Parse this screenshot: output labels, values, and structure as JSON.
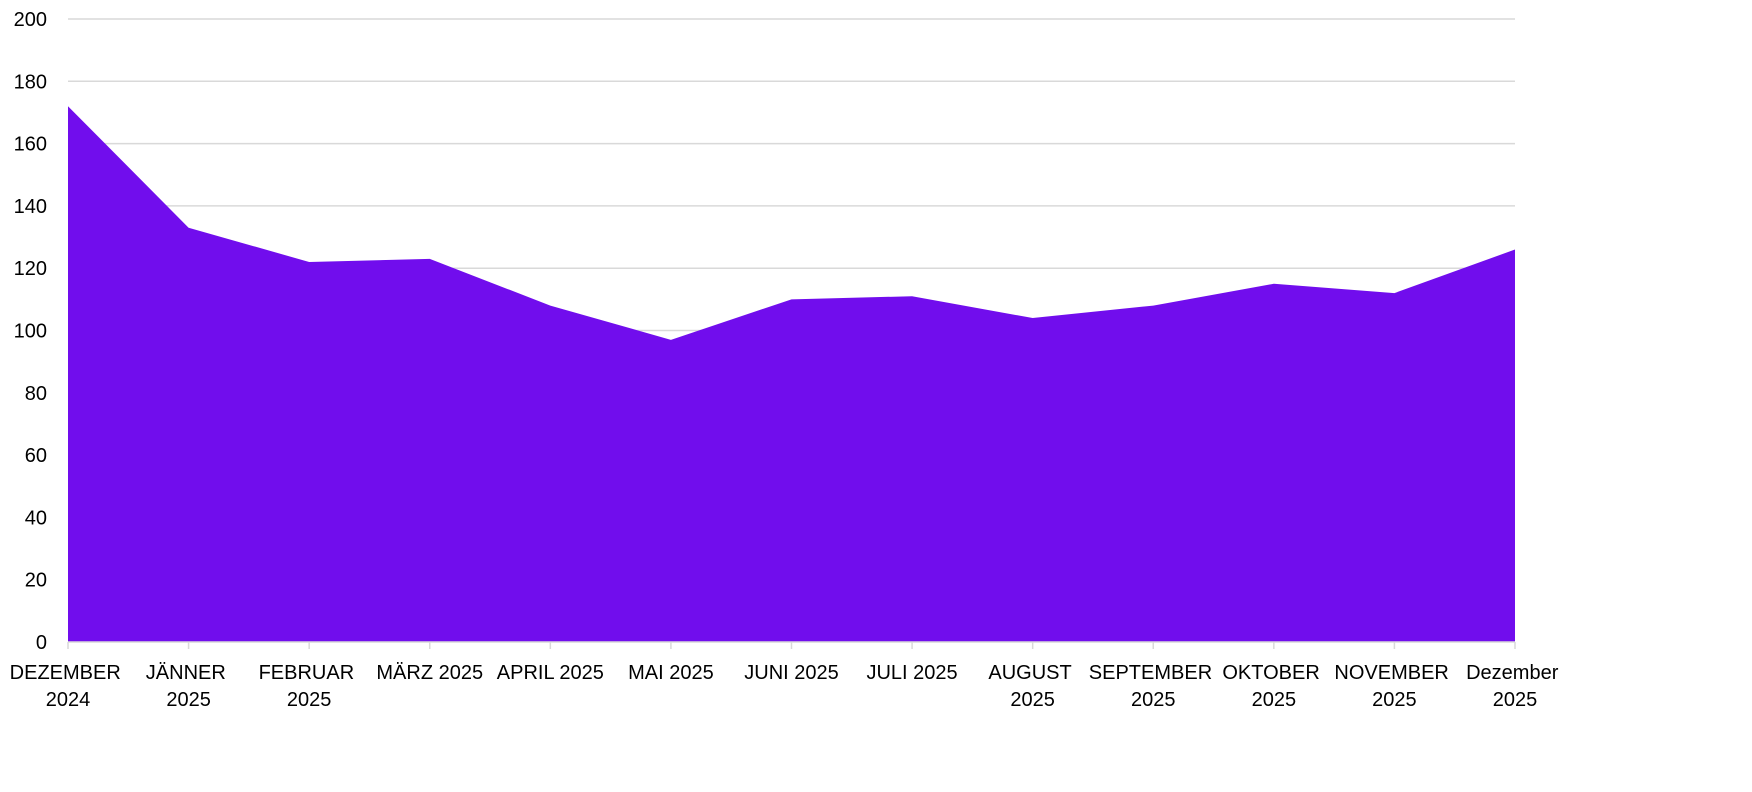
{
  "chart_data": {
    "type": "area",
    "categories": [
      "DEZEMBER 2024",
      "JÄNNER 2025",
      "FEBRUAR 2025",
      "MÄRZ 2025",
      "APRIL 2025",
      "MAI 2025",
      "JUNI 2025",
      "JULI 2025",
      "AUGUST 2025",
      "SEPTEMBER 2025",
      "OKTOBER 2025",
      "NOVEMBER 2025",
      "Dezember 2025"
    ],
    "values": [
      172,
      133,
      122,
      123,
      108,
      97,
      110,
      111,
      104,
      108,
      115,
      112,
      126
    ],
    "color": "#710ded",
    "ylim": [
      0,
      200
    ],
    "yticks": [
      0,
      20,
      40,
      60,
      80,
      100,
      120,
      140,
      160,
      180,
      200
    ],
    "grid": true
  }
}
